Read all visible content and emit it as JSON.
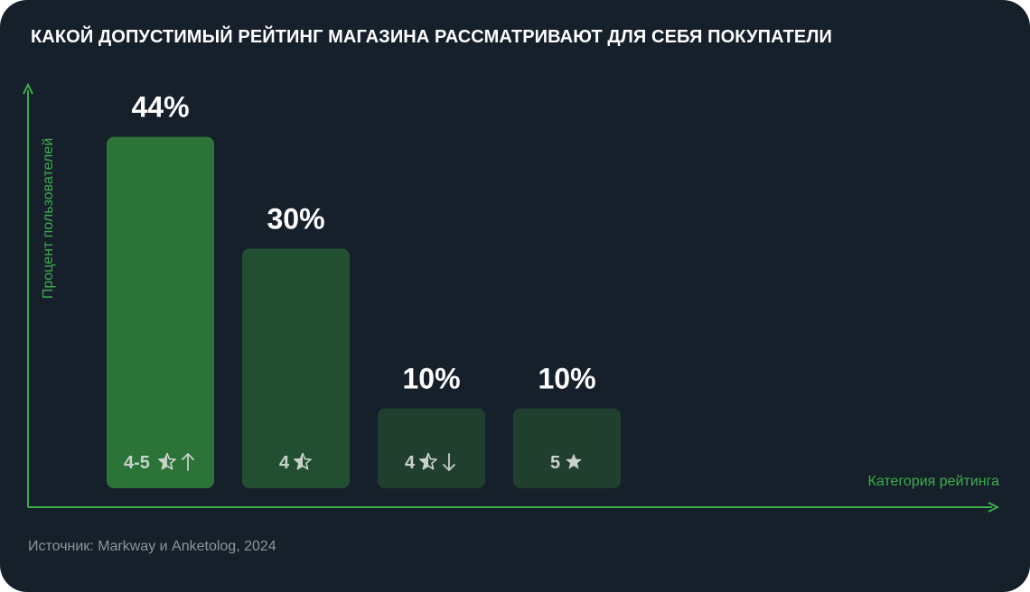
{
  "title": "КАКОЙ ДОПУСТИМЫЙ РЕЙТИНГ МАГАЗИНА РАССМАТРИВАЮТ ДЛЯ СЕБЯ ПОКУПАТЕЛИ",
  "source": "Источник: Markway и Anketolog, 2024",
  "colors": {
    "background": "#16202b",
    "axis": "#3cae4a",
    "bar_highlight": "#2b7337",
    "bar": "#224f31",
    "bar_dark": "#213f2f",
    "value_text": "#ffffff",
    "category_text": "#c9d1cb",
    "source_text": "#8d949d"
  },
  "chart_data": {
    "type": "bar",
    "title": "КАКОЙ ДОПУСТИМЫЙ РЕЙТИНГ МАГАЗИНА РАССМАТРИВАЮТ ДЛЯ СЕБЯ ПОКУПАТЕЛИ",
    "xlabel": "Категория рейтинга",
    "ylabel": "Процент пользователей",
    "categories": [
      {
        "number": "4-5",
        "star": "half-star-icon",
        "arrow": "arrow-up-icon"
      },
      {
        "number": "4",
        "star": "half-star-icon",
        "arrow": ""
      },
      {
        "number": "4",
        "star": "half-star-icon",
        "arrow": "arrow-down-icon"
      },
      {
        "number": "5",
        "star": "full-star-icon",
        "arrow": ""
      }
    ],
    "values": [
      44,
      30,
      10,
      10
    ],
    "value_labels": [
      "44%",
      "30%",
      "10%",
      "10%"
    ],
    "ylim": [
      0,
      50
    ],
    "grid": false,
    "legend": "none"
  }
}
